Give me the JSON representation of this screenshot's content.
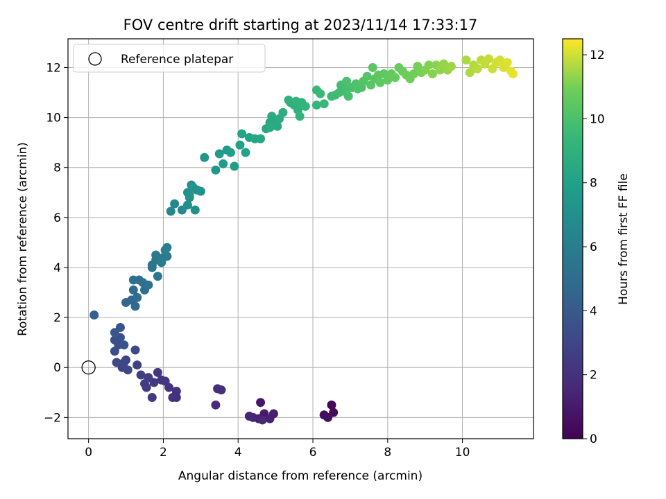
{
  "chart_data": {
    "type": "scatter",
    "title": "FOV centre drift starting at 2023/11/14 17:33:17",
    "xlabel": "Angular distance from reference (arcmin)",
    "ylabel": "Rotation from reference (arcmin)",
    "xlim": [
      -0.55,
      11.9
    ],
    "ylim": [
      -2.85,
      13.15
    ],
    "xticks": [
      0,
      2,
      4,
      6,
      8,
      10
    ],
    "yticks": [
      -2,
      0,
      2,
      4,
      6,
      8,
      10,
      12
    ],
    "ytick_labels": [
      "−2",
      "0",
      "2",
      "4",
      "6",
      "8",
      "10",
      "12"
    ],
    "grid": true,
    "legend": {
      "position": "top-left",
      "entries": [
        "Reference platepar"
      ]
    },
    "reference_point": {
      "x": 0,
      "y": 0,
      "name": "Reference platepar"
    },
    "colorbar": {
      "label": "Hours from first FF file",
      "min": 0,
      "max": 12.5,
      "ticks": [
        0,
        2,
        4,
        6,
        8,
        10,
        12
      ],
      "colormap": "viridis"
    },
    "points": [
      [
        6.5,
        -1.5,
        0.2
      ],
      [
        6.55,
        -1.8,
        0.35
      ],
      [
        6.3,
        -1.9,
        0.5
      ],
      [
        6.4,
        -2.0,
        0.6
      ],
      [
        4.6,
        -1.4,
        0.9
      ],
      [
        4.7,
        -1.85,
        1.0
      ],
      [
        4.55,
        -2.05,
        1.1
      ],
      [
        4.95,
        -1.85,
        1.2
      ],
      [
        4.85,
        -2.05,
        1.3
      ],
      [
        4.4,
        -2.0,
        1.4
      ],
      [
        4.3,
        -1.95,
        1.5
      ],
      [
        4.65,
        -2.1,
        1.6
      ],
      [
        3.4,
        -1.5,
        1.75
      ],
      [
        3.45,
        -0.85,
        1.85
      ],
      [
        3.55,
        -0.9,
        1.95
      ],
      [
        2.35,
        -1.2,
        2.0
      ],
      [
        2.25,
        -1.2,
        2.05
      ],
      [
        2.35,
        -0.95,
        2.1
      ],
      [
        2.15,
        -0.8,
        2.15
      ],
      [
        2.05,
        -0.55,
        2.2
      ],
      [
        1.95,
        -0.5,
        2.25
      ],
      [
        1.85,
        -0.2,
        2.3
      ],
      [
        1.75,
        -0.6,
        2.35
      ],
      [
        1.7,
        -1.2,
        2.4
      ],
      [
        1.55,
        -0.8,
        2.45
      ],
      [
        1.6,
        -0.4,
        2.5
      ],
      [
        1.5,
        -0.65,
        2.55
      ],
      [
        1.4,
        -0.3,
        2.6
      ],
      [
        1.3,
        0.1,
        2.7
      ],
      [
        1.0,
        0.3,
        2.8
      ],
      [
        0.9,
        0.0,
        2.9
      ],
      [
        0.95,
        0.2,
        3.0
      ],
      [
        1.05,
        -0.1,
        3.1
      ],
      [
        0.75,
        0.2,
        3.15
      ],
      [
        1.25,
        0.7,
        3.2
      ],
      [
        0.7,
        0.65,
        3.3
      ],
      [
        0.8,
        0.9,
        3.4
      ],
      [
        0.7,
        1.1,
        3.5
      ],
      [
        0.85,
        1.2,
        3.6
      ],
      [
        0.95,
        0.9,
        3.7
      ],
      [
        0.85,
        1.6,
        3.8
      ],
      [
        0.7,
        1.4,
        3.9
      ],
      [
        0.15,
        2.1,
        4.3
      ],
      [
        1.0,
        2.6,
        4.6
      ],
      [
        1.15,
        2.7,
        4.7
      ],
      [
        1.25,
        2.45,
        4.8
      ],
      [
        1.3,
        2.8,
        4.9
      ],
      [
        1.2,
        3.1,
        5.0
      ],
      [
        1.5,
        3.1,
        5.05
      ],
      [
        1.35,
        3.5,
        5.1
      ],
      [
        1.2,
        3.5,
        5.15
      ],
      [
        1.45,
        3.4,
        5.2
      ],
      [
        1.6,
        3.3,
        5.3
      ],
      [
        1.7,
        4.0,
        5.4
      ],
      [
        1.85,
        3.65,
        5.45
      ],
      [
        1.7,
        4.1,
        5.5
      ],
      [
        1.8,
        4.3,
        5.6
      ],
      [
        1.8,
        4.5,
        5.7
      ],
      [
        2.0,
        4.4,
        5.8
      ],
      [
        2.1,
        4.45,
        5.9
      ],
      [
        2.05,
        4.7,
        5.95
      ],
      [
        1.95,
        4.2,
        6.0
      ],
      [
        2.1,
        4.8,
        6.05
      ],
      [
        2.2,
        6.25,
        6.5
      ],
      [
        2.3,
        6.55,
        6.6
      ],
      [
        2.5,
        6.3,
        6.7
      ],
      [
        2.65,
        6.5,
        6.8
      ],
      [
        2.7,
        6.8,
        6.9
      ],
      [
        2.65,
        7.0,
        7.0
      ],
      [
        2.75,
        7.3,
        7.05
      ],
      [
        2.85,
        6.3,
        7.1
      ],
      [
        2.9,
        7.1,
        7.15
      ],
      [
        3.0,
        7.05,
        7.2
      ],
      [
        2.8,
        7.2,
        7.25
      ],
      [
        2.7,
        6.9,
        7.3
      ],
      [
        3.1,
        8.4,
        7.4
      ],
      [
        3.4,
        7.9,
        7.55
      ],
      [
        3.5,
        8.55,
        7.6
      ],
      [
        3.6,
        8.15,
        7.7
      ],
      [
        3.7,
        8.7,
        7.75
      ],
      [
        3.8,
        8.6,
        7.85
      ],
      [
        3.9,
        8.05,
        7.9
      ],
      [
        4.05,
        8.9,
        8.0
      ],
      [
        4.2,
        8.6,
        8.05
      ],
      [
        4.3,
        9.2,
        8.1
      ],
      [
        4.1,
        9.35,
        8.2
      ],
      [
        4.45,
        9.15,
        8.3
      ],
      [
        4.6,
        9.15,
        8.35
      ],
      [
        4.75,
        9.55,
        8.4
      ],
      [
        4.85,
        9.8,
        8.45
      ],
      [
        4.95,
        9.9,
        8.5
      ],
      [
        5.05,
        9.65,
        8.55
      ],
      [
        4.9,
        10.05,
        8.6
      ],
      [
        5.1,
        9.95,
        8.65
      ],
      [
        4.85,
        9.6,
        8.7
      ],
      [
        5.2,
        10.2,
        8.8
      ],
      [
        5.4,
        10.6,
        8.85
      ],
      [
        5.5,
        10.5,
        8.9
      ],
      [
        5.6,
        10.3,
        8.95
      ],
      [
        5.35,
        10.7,
        9.0
      ],
      [
        5.7,
        10.6,
        9.05
      ],
      [
        5.65,
        10.05,
        9.1
      ],
      [
        5.55,
        10.65,
        9.15
      ],
      [
        5.8,
        10.45,
        9.2
      ],
      [
        6.1,
        10.5,
        9.3
      ],
      [
        6.1,
        11.1,
        9.4
      ],
      [
        6.3,
        10.55,
        9.45
      ],
      [
        6.2,
        10.95,
        9.5
      ],
      [
        6.5,
        10.85,
        9.55
      ],
      [
        6.6,
        10.9,
        9.6
      ],
      [
        6.7,
        11.0,
        9.7
      ],
      [
        6.85,
        11.05,
        9.75
      ],
      [
        6.75,
        11.3,
        9.8
      ],
      [
        6.9,
        11.1,
        9.85
      ],
      [
        6.95,
        10.85,
        9.9
      ],
      [
        7.05,
        11.2,
        9.95
      ],
      [
        6.9,
        11.45,
        10.0
      ],
      [
        7.15,
        11.35,
        10.05
      ],
      [
        7.2,
        11.15,
        10.1
      ],
      [
        7.3,
        11.2,
        10.15
      ],
      [
        7.35,
        11.45,
        10.2
      ],
      [
        7.45,
        11.65,
        10.25
      ],
      [
        7.55,
        11.3,
        10.3
      ],
      [
        7.6,
        12.0,
        10.35
      ],
      [
        7.65,
        11.55,
        10.4
      ],
      [
        7.75,
        11.7,
        10.45
      ],
      [
        7.8,
        11.4,
        10.5
      ],
      [
        7.9,
        11.75,
        10.55
      ],
      [
        8.0,
        11.5,
        10.6
      ],
      [
        8.1,
        11.75,
        10.65
      ],
      [
        8.2,
        11.6,
        10.7
      ],
      [
        8.3,
        12.0,
        10.75
      ],
      [
        8.4,
        11.85,
        10.8
      ],
      [
        8.5,
        11.7,
        10.85
      ],
      [
        8.6,
        11.55,
        10.9
      ],
      [
        8.7,
        11.75,
        10.95
      ],
      [
        8.8,
        12.05,
        11.0
      ],
      [
        8.9,
        11.8,
        11.05
      ],
      [
        9.0,
        11.9,
        11.1
      ],
      [
        9.1,
        12.1,
        11.15
      ],
      [
        9.2,
        11.75,
        11.2
      ],
      [
        9.3,
        12.1,
        11.25
      ],
      [
        9.4,
        11.9,
        11.3
      ],
      [
        9.5,
        12.15,
        11.35
      ],
      [
        9.6,
        11.9,
        11.4
      ],
      [
        9.7,
        12.05,
        11.45
      ],
      [
        10.1,
        12.3,
        11.6
      ],
      [
        10.2,
        11.8,
        11.65
      ],
      [
        10.3,
        12.1,
        11.7
      ],
      [
        10.4,
        11.95,
        11.75
      ],
      [
        10.5,
        12.3,
        11.8
      ],
      [
        10.6,
        12.15,
        11.85
      ],
      [
        10.7,
        12.35,
        11.9
      ],
      [
        10.8,
        11.95,
        11.95
      ],
      [
        10.9,
        12.2,
        12.0
      ],
      [
        11.0,
        12.3,
        12.05
      ],
      [
        11.1,
        12.0,
        12.1
      ],
      [
        11.2,
        12.2,
        12.15
      ],
      [
        11.3,
        11.85,
        12.2
      ],
      [
        11.35,
        11.75,
        12.25
      ]
    ]
  }
}
